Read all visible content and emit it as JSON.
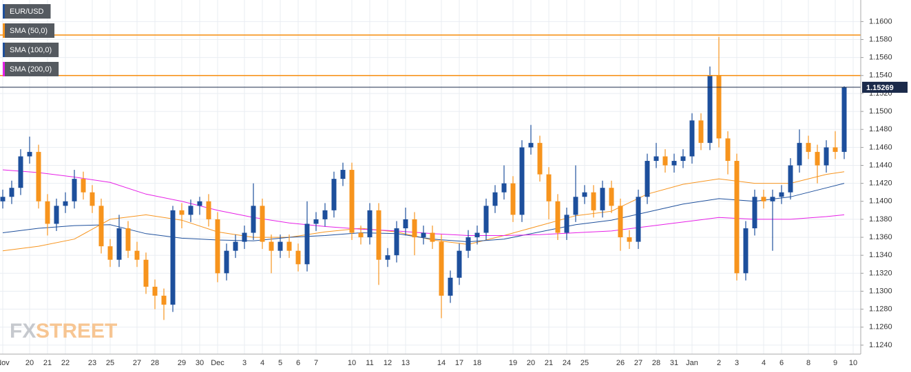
{
  "chart_data": {
    "type": "candlestick",
    "title": "EUR/USD",
    "categories": [
      "Nov",
      null,
      null,
      "20",
      null,
      "21",
      null,
      "22",
      null,
      null,
      "23",
      null,
      "25",
      null,
      null,
      "27",
      null,
      "28",
      null,
      null,
      "29",
      null,
      "30",
      null,
      "Dec",
      null,
      null,
      "3",
      null,
      "4",
      null,
      "5",
      null,
      "6",
      null,
      "7",
      null,
      null,
      null,
      "10",
      null,
      "11",
      null,
      "12",
      null,
      "13",
      null,
      null,
      null,
      "14",
      null,
      "17",
      null,
      "18",
      null,
      null,
      null,
      "19",
      null,
      "20",
      null,
      "21",
      null,
      "24",
      null,
      "25",
      null,
      null,
      null,
      "26",
      null,
      "27",
      null,
      "28",
      null,
      "31",
      null,
      "Jan",
      null,
      null,
      "2",
      null,
      "3",
      null,
      null,
      "4",
      null,
      "6",
      null,
      null,
      "8",
      null,
      null,
      "9",
      null,
      "10"
    ],
    "open": [
      1.14,
      1.1405,
      1.1415,
      1.145,
      1.1455,
      1.14,
      1.1375,
      1.1395,
      1.14,
      1.1425,
      1.141,
      1.1395,
      1.135,
      1.1335,
      1.137,
      1.1345,
      1.1335,
      1.1305,
      1.1295,
      1.1285,
      1.139,
      1.1385,
      1.1395,
      1.14,
      1.138,
      1.132,
      1.1345,
      1.1355,
      1.1365,
      1.1395,
      1.1355,
      1.1345,
      1.1355,
      1.1345,
      1.133,
      1.1375,
      1.138,
      1.139,
      1.1425,
      1.1435,
      1.1365,
      1.136,
      1.139,
      1.1335,
      1.134,
      1.137,
      1.138,
      1.136,
      1.1365,
      1.1355,
      1.1295,
      1.1315,
      1.1345,
      1.136,
      1.1365,
      1.1395,
      1.141,
      1.142,
      1.1385,
      1.146,
      1.1465,
      1.143,
      1.14,
      1.1365,
      1.1385,
      1.1405,
      1.141,
      1.139,
      1.1415,
      1.1395,
      1.136,
      1.1355,
      1.1405,
      1.1445,
      1.145,
      1.144,
      1.1445,
      1.145,
      1.149,
      1.1465,
      1.154,
      1.147,
      1.1445,
      1.132,
      1.137,
      1.1405,
      1.14,
      1.1405,
      1.141,
      1.144,
      1.1465,
      1.1455,
      1.144,
      1.146,
      1.1455,
      null
    ],
    "high": [
      1.1413,
      1.1423,
      1.1458,
      1.1472,
      1.1463,
      1.1408,
      1.1403,
      1.141,
      1.1435,
      1.1433,
      1.1418,
      1.1403,
      1.1358,
      1.1385,
      1.1378,
      1.1355,
      1.1343,
      1.1313,
      1.1303,
      1.1395,
      1.1398,
      1.1402,
      1.1405,
      1.1408,
      1.1388,
      1.1353,
      1.1363,
      1.1373,
      1.142,
      1.1403,
      1.1363,
      1.1363,
      1.1363,
      1.1353,
      1.14,
      1.1388,
      1.1398,
      1.1433,
      1.1443,
      1.1443,
      1.1373,
      1.1398,
      1.1398,
      1.1348,
      1.1378,
      1.1393,
      1.1388,
      1.1373,
      1.1373,
      1.1363,
      1.1323,
      1.1353,
      1.1368,
      1.1373,
      1.1403,
      1.1418,
      1.144,
      1.1428,
      1.1468,
      1.1485,
      1.1473,
      1.1438,
      1.1408,
      1.1393,
      1.144,
      1.1418,
      1.1418,
      1.1423,
      1.1423,
      1.1403,
      1.1368,
      1.1413,
      1.1453,
      1.1465,
      1.1458,
      1.1453,
      1.1458,
      1.1498,
      1.1498,
      1.155,
      1.1583,
      1.1478,
      1.1453,
      1.1378,
      1.1413,
      1.1413,
      1.1413,
      1.1418,
      1.1448,
      1.148,
      1.1473,
      1.1463,
      1.1468,
      1.1478,
      1.1528,
      null
    ],
    "low": [
      1.1392,
      1.1397,
      1.1407,
      1.1442,
      1.1392,
      1.1362,
      1.1367,
      1.1387,
      1.1392,
      1.1402,
      1.1387,
      1.1342,
      1.1327,
      1.1327,
      1.1337,
      1.1327,
      1.1297,
      1.128,
      1.1268,
      1.1277,
      1.137,
      1.1377,
      1.1385,
      1.1372,
      1.131,
      1.1312,
      1.1337,
      1.1347,
      1.1357,
      1.1347,
      1.132,
      1.1337,
      1.1337,
      1.1322,
      1.1322,
      1.1367,
      1.1372,
      1.1382,
      1.1417,
      1.1357,
      1.1352,
      1.1352,
      1.1307,
      1.1327,
      1.1332,
      1.1362,
      1.134,
      1.1352,
      1.1347,
      1.127,
      1.1287,
      1.1307,
      1.1337,
      1.1352,
      1.1357,
      1.1387,
      1.1402,
      1.1377,
      1.1377,
      1.1452,
      1.1422,
      1.138,
      1.1357,
      1.1357,
      1.1377,
      1.1397,
      1.1382,
      1.1382,
      1.1387,
      1.1345,
      1.1347,
      1.1347,
      1.1397,
      1.1437,
      1.1432,
      1.1432,
      1.1437,
      1.1442,
      1.1457,
      1.1457,
      1.146,
      1.143,
      1.1312,
      1.1312,
      1.1362,
      1.1392,
      1.1345,
      1.1397,
      1.1402,
      1.1432,
      1.1447,
      1.142,
      1.1432,
      1.1447,
      1.1447,
      null
    ],
    "close": [
      1.1405,
      1.1415,
      1.145,
      1.1455,
      1.14,
      1.1375,
      1.1395,
      1.14,
      1.1425,
      1.141,
      1.1395,
      1.135,
      1.1335,
      1.137,
      1.1345,
      1.1335,
      1.1305,
      1.1295,
      1.1285,
      1.139,
      1.1385,
      1.1395,
      1.14,
      1.138,
      1.132,
      1.1345,
      1.1355,
      1.1365,
      1.1395,
      1.1355,
      1.1345,
      1.1355,
      1.1345,
      1.133,
      1.1375,
      1.138,
      1.139,
      1.1425,
      1.1435,
      1.1365,
      1.136,
      1.139,
      1.1335,
      1.134,
      1.137,
      1.138,
      1.136,
      1.1365,
      1.1355,
      1.1295,
      1.1315,
      1.1345,
      1.136,
      1.1365,
      1.1395,
      1.141,
      1.142,
      1.1385,
      1.146,
      1.1465,
      1.143,
      1.14,
      1.1365,
      1.1385,
      1.1405,
      1.141,
      1.139,
      1.1415,
      1.1395,
      1.136,
      1.1355,
      1.1405,
      1.1445,
      1.145,
      1.144,
      1.1445,
      1.145,
      1.149,
      1.1465,
      1.154,
      1.147,
      1.1445,
      1.132,
      1.137,
      1.1405,
      1.14,
      1.1405,
      1.141,
      1.144,
      1.1465,
      1.1455,
      1.144,
      1.146,
      1.1455,
      1.1527,
      null
    ],
    "up_color": "#1d4f9c",
    "down_color": "#f7941d",
    "series": [
      {
        "name": "SMA (50,0)",
        "color": "#f7941d",
        "x": [
          0,
          4,
          8,
          12,
          16,
          20,
          24,
          28,
          32,
          36,
          40,
          44,
          48,
          52,
          56,
          60,
          64,
          68,
          72,
          76,
          80,
          84,
          88,
          92,
          94
        ],
        "values": [
          1.1345,
          1.135,
          1.1358,
          1.138,
          1.1385,
          1.1379,
          1.1366,
          1.136,
          1.136,
          1.1366,
          1.137,
          1.1366,
          1.1357,
          1.1352,
          1.1362,
          1.1373,
          1.1384,
          1.1389,
          1.1408,
          1.1419,
          1.1425,
          1.142,
          1.142,
          1.143,
          1.1433
        ]
      },
      {
        "name": "SMA (100,0)",
        "color": "#1d4f9c",
        "x": [
          0,
          4,
          8,
          12,
          16,
          20,
          24,
          28,
          32,
          36,
          40,
          44,
          48,
          52,
          56,
          60,
          64,
          68,
          72,
          76,
          80,
          84,
          88,
          92,
          94
        ],
        "values": [
          1.1365,
          1.137,
          1.1373,
          1.1374,
          1.1364,
          1.1359,
          1.1357,
          1.1356,
          1.136,
          1.1362,
          1.1365,
          1.1364,
          1.1358,
          1.1355,
          1.1358,
          1.1366,
          1.1374,
          1.1379,
          1.1388,
          1.1397,
          1.1403,
          1.14,
          1.1405,
          1.1415,
          1.142
        ]
      },
      {
        "name": "SMA (200,0)",
        "color": "#e61ee6",
        "x": [
          0,
          4,
          8,
          12,
          16,
          20,
          24,
          28,
          32,
          36,
          40,
          44,
          48,
          52,
          56,
          60,
          64,
          68,
          72,
          76,
          80,
          84,
          88,
          92,
          94
        ],
        "values": [
          1.1435,
          1.1432,
          1.1427,
          1.1421,
          1.1408,
          1.14,
          1.139,
          1.1382,
          1.1376,
          1.1372,
          1.1369,
          1.1367,
          1.1364,
          1.1362,
          1.1362,
          1.1363,
          1.1365,
          1.1367,
          1.1372,
          1.1377,
          1.1382,
          1.138,
          1.138,
          1.1383,
          1.1385
        ]
      }
    ],
    "levels": [
      {
        "value": 1.1585,
        "color": "#f7941d"
      },
      {
        "value": 1.154,
        "color": "#f7941d"
      }
    ],
    "last_price": 1.15269,
    "last_price_color": "#1b2a4a",
    "ylim": [
      1.123,
      1.1624
    ],
    "yticks": [
      {
        "value": 1.124,
        "label": "1.1240"
      },
      {
        "value": 1.126,
        "label": "1.1260"
      },
      {
        "value": 1.128,
        "label": "1.1280"
      },
      {
        "value": 1.13,
        "label": "1.1300"
      },
      {
        "value": 1.132,
        "label": "1.1320"
      },
      {
        "value": 1.134,
        "label": "1.1340"
      },
      {
        "value": 1.136,
        "label": "1.1360"
      },
      {
        "value": 1.138,
        "label": "1.1380"
      },
      {
        "value": 1.14,
        "label": "1.1400"
      },
      {
        "value": 1.142,
        "label": "1.1420"
      },
      {
        "value": 1.144,
        "label": "1.1440"
      },
      {
        "value": 1.146,
        "label": "1.1460"
      },
      {
        "value": 1.148,
        "label": "1.1480"
      },
      {
        "value": 1.15,
        "label": "1.1500"
      },
      {
        "value": 1.152,
        "label": "1.1520"
      },
      {
        "value": 1.154,
        "label": "1.1540"
      },
      {
        "value": 1.156,
        "label": "1.1560"
      },
      {
        "value": 1.158,
        "label": "1.1580"
      },
      {
        "value": 1.16,
        "label": "1.1600"
      }
    ],
    "grid": true
  },
  "watermark": [
    "FX",
    "STREET"
  ]
}
